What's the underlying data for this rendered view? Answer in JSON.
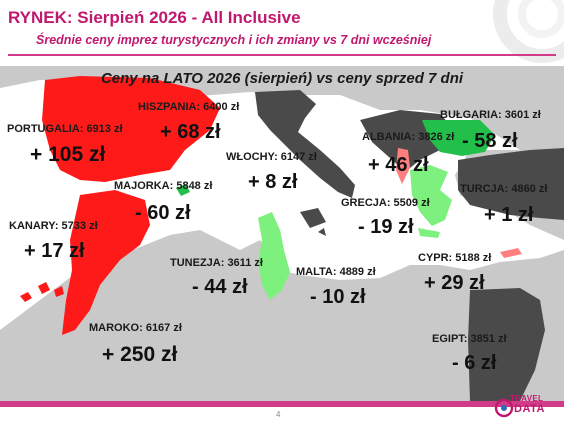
{
  "header": {
    "title": "RYNEK: Sierpień 2026 - All Inclusive",
    "subtitle": "Średnie ceny imprez turystycznych i ich zmiany vs 7 dni wcześniej"
  },
  "map": {
    "title": "Ceny na LATO 2026 (sierpień) vs ceny sprzed 7 dni",
    "colors": {
      "increase": "#ff1a1a",
      "decrease_green": "#22c04a",
      "decrease_light": "#7ef07e",
      "increase_light": "#ff7f7f",
      "neutral_dark": "#4a4a4a",
      "land": "#c9c9c9",
      "sea": "#ffffff"
    },
    "destinations": [
      {
        "key": "portugalia",
        "label": "PORTUGALIA: 6913 zł",
        "change": "+ 105 zł"
      },
      {
        "key": "hiszpania",
        "label": "HISZPANIA: 6400 zł",
        "change": "+ 68 zł"
      },
      {
        "key": "majorka",
        "label": "MAJORKA: 5848 zł",
        "change": "- 60 zł"
      },
      {
        "key": "kanary",
        "label": "KANARY: 5733 zł",
        "change": "+ 17 zł"
      },
      {
        "key": "maroko",
        "label": "MAROKO: 6167 zł",
        "change": "+ 250 zł"
      },
      {
        "key": "wlochy",
        "label": "WŁOCHY: 6147 zł",
        "change": "+ 8 zł"
      },
      {
        "key": "tunezja",
        "label": "TUNEZJA: 3611 zł",
        "change": "- 44 zł"
      },
      {
        "key": "malta",
        "label": "MALTA: 4889 zł",
        "change": "- 10 zł"
      },
      {
        "key": "albania",
        "label": "ALBANIA: 3826 zł",
        "change": "+ 46 zł"
      },
      {
        "key": "grecja",
        "label": "GRECJA: 5509 zł",
        "change": "- 19 zł"
      },
      {
        "key": "bulgaria",
        "label": "BUŁGARIA: 3601 zł",
        "change": "- 58 zł"
      },
      {
        "key": "turcja",
        "label": "TURCJA: 4860 zł",
        "change": "+ 1 zł"
      },
      {
        "key": "cypr",
        "label": "CYPR: 5188 zł",
        "change": "+ 29 zł"
      },
      {
        "key": "egipt",
        "label": "EGIPT: 3851 zł",
        "change": "- 6 zł"
      }
    ]
  },
  "footer": {
    "page_number": "4",
    "logo_top": "TRAVEL",
    "logo_bottom": "DATA"
  }
}
